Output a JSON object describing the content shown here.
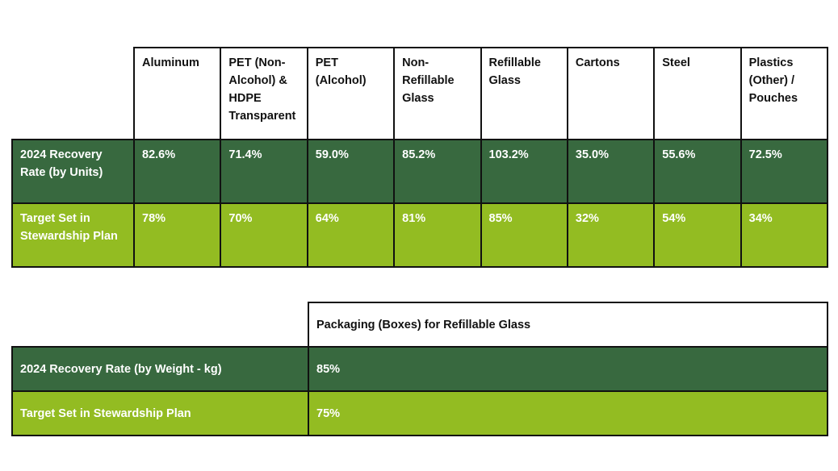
{
  "recovery_table": {
    "columns": [
      "Aluminum",
      "PET (Non-Alcohol) & HDPE Transparent",
      "PET (Alcohol)",
      "Non-Refillable Glass",
      "Refillable Glass",
      "Cartons",
      "Steel",
      "Plastics (Other) / Pouches"
    ],
    "rows": [
      {
        "label": "2024 Recovery Rate (by Units)",
        "values": [
          "82.6%",
          "71.4%",
          "59.0%",
          "85.2%",
          "103.2%",
          "35.0%",
          "55.6%",
          "72.5%"
        ]
      },
      {
        "label": "Target Set in Stewardship Plan",
        "values": [
          "78%",
          "70%",
          "64%",
          "81%",
          "85%",
          "32%",
          "54%",
          "34%"
        ]
      }
    ]
  },
  "packaging_table": {
    "column": "Packaging (Boxes) for Refillable Glass",
    "rows": [
      {
        "label": "2024 Recovery Rate (by Weight - kg)",
        "value": "85%"
      },
      {
        "label": "Target Set in Stewardship Plan",
        "value": "75%"
      }
    ]
  },
  "colors": {
    "dark_green": "#38693f",
    "lime_green": "#93bc22",
    "header_bg": "#ffffff",
    "border": "#111111"
  }
}
